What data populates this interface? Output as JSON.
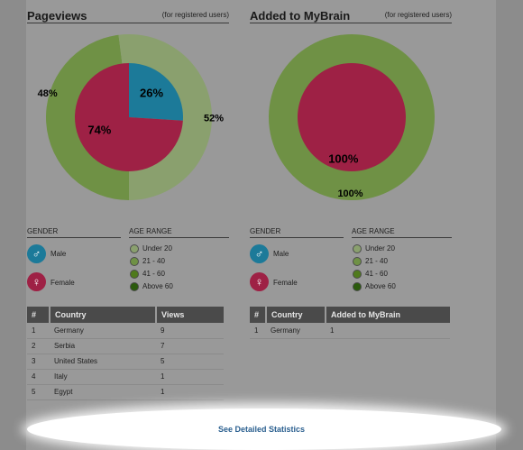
{
  "colors": {
    "male": "#1c7a99",
    "female": "#9e2145",
    "age_under_20": "#8aa06e",
    "age_21_40": "#6f9145",
    "age_41_60": "#4f7a1c",
    "age_above_60": "#2b5a0d",
    "link": "#2a5f8f"
  },
  "pageviews": {
    "title": "Pageviews",
    "note": "(for registered users)",
    "chart_data": {
      "type": "pie",
      "inner": {
        "series": "gender",
        "categories": [
          "Male",
          "Female"
        ],
        "values": [
          26,
          74
        ],
        "labels": [
          "26%",
          "74%"
        ]
      },
      "outer": {
        "series": "age range",
        "categories": [
          "21 - 40",
          "Under 20"
        ],
        "values": [
          48,
          52
        ],
        "labels": [
          "48%",
          "52%"
        ]
      }
    },
    "gender_heading": "GENDER",
    "age_heading": "AGE RANGE",
    "gender_items": [
      {
        "label": "Male",
        "symbol": "♂"
      },
      {
        "label": "Female",
        "symbol": "♀"
      }
    ],
    "age_items": [
      {
        "label": "Under 20"
      },
      {
        "label": "21 - 40"
      },
      {
        "label": "41 - 60"
      },
      {
        "label": "Above 60"
      }
    ],
    "table": {
      "headers": [
        "#",
        "Country",
        "Views"
      ],
      "rows": [
        [
          "1",
          "Germany",
          "9"
        ],
        [
          "2",
          "Serbia",
          "7"
        ],
        [
          "3",
          "United States",
          "5"
        ],
        [
          "4",
          "Italy",
          "1"
        ],
        [
          "5",
          "Egypt",
          "1"
        ]
      ]
    }
  },
  "mybrain": {
    "title": "Added to MyBrain",
    "note": "(for registered users)",
    "chart_data": {
      "type": "pie",
      "inner": {
        "series": "gender",
        "categories": [
          "Female"
        ],
        "values": [
          100
        ],
        "labels": [
          "100%"
        ]
      },
      "outer": {
        "series": "age range",
        "categories": [
          "21 - 40"
        ],
        "values": [
          100
        ],
        "labels": [
          "100%"
        ]
      }
    },
    "gender_heading": "GENDER",
    "age_heading": "AGE RANGE",
    "gender_items": [
      {
        "label": "Male",
        "symbol": "♂"
      },
      {
        "label": "Female",
        "symbol": "♀"
      }
    ],
    "age_items": [
      {
        "label": "Under 20"
      },
      {
        "label": "21 - 40"
      },
      {
        "label": "41 - 60"
      },
      {
        "label": "Above 60"
      }
    ],
    "table": {
      "headers": [
        "#",
        "Country",
        "Added to MyBrain"
      ],
      "rows": [
        [
          "1",
          "Germany",
          "1"
        ]
      ]
    }
  },
  "footer": {
    "link_text": "See Detailed Statistics"
  }
}
